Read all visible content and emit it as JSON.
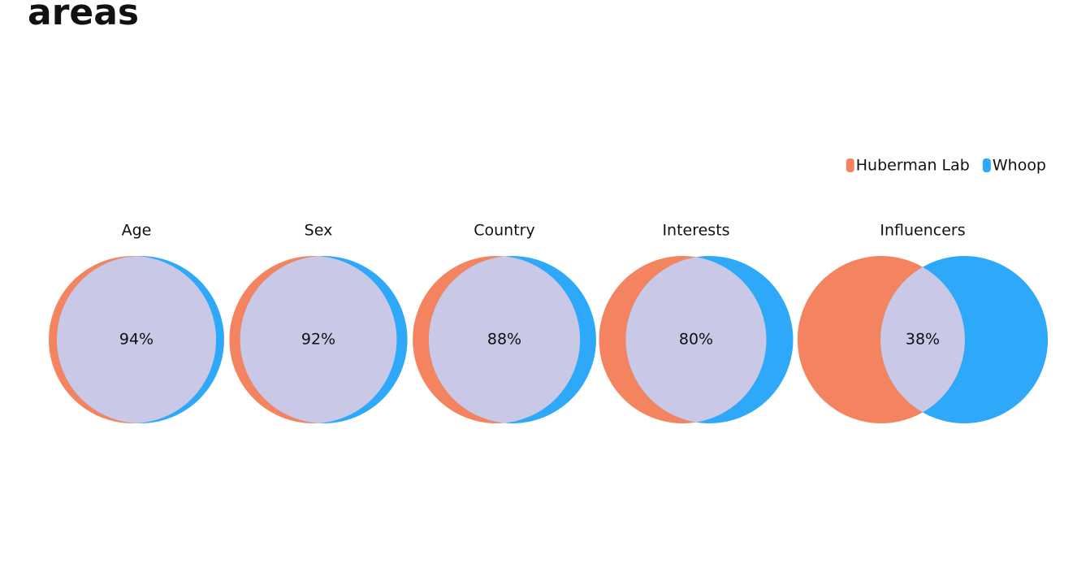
{
  "chart_data": {
    "type": "venn",
    "title": "areas",
    "categories": [
      "Age",
      "Sex",
      "Country",
      "Interests",
      "Influencers"
    ],
    "values": [
      94,
      92,
      88,
      80,
      38
    ],
    "value_labels": [
      "94%",
      "92%",
      "88%",
      "80%",
      "38%"
    ],
    "series": [
      {
        "name": "Huberman Lab",
        "color": "#f4845f"
      },
      {
        "name": "Whoop",
        "color": "#2ea8f8"
      }
    ],
    "overlap_color": "#c9c8e6",
    "legend": "top-right"
  }
}
